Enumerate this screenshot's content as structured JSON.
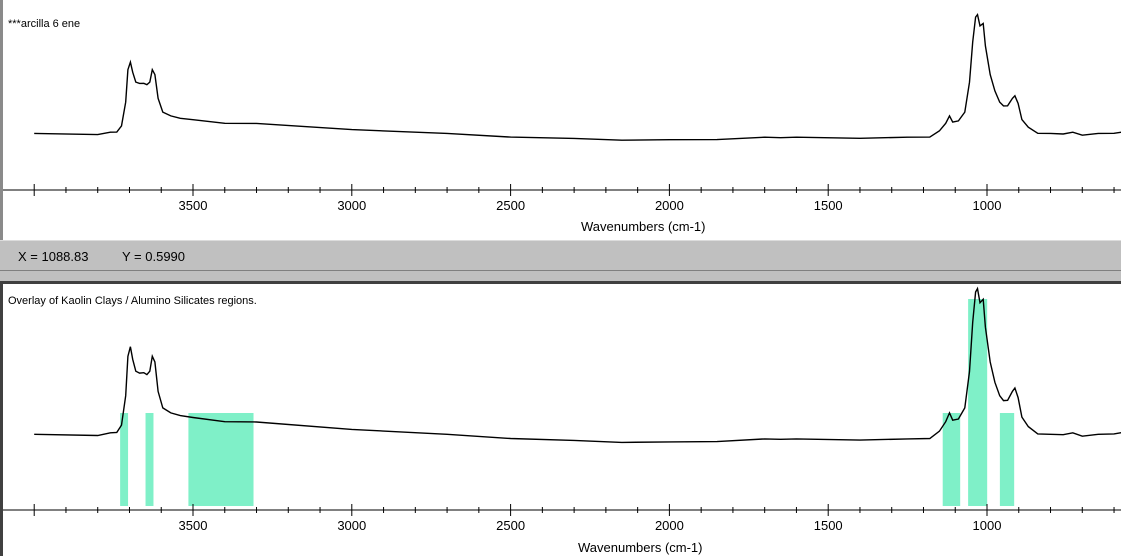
{
  "top_pane": {
    "title": "***arcilla 6 ene",
    "xlabel": "Wavenumbers (cm-1)",
    "ticks": [
      "3500",
      "3000",
      "2500",
      "2000",
      "1500",
      "1000"
    ]
  },
  "status": {
    "x_readout": "X = 1088.83",
    "y_readout": "Y = 0.5990"
  },
  "bottom_pane": {
    "title": "Overlay of Kaolin Clays / Alumino Silicates regions.",
    "xlabel": "Wavenumbers (cm-1)",
    "ticks": [
      "3500",
      "3000",
      "2500",
      "2000",
      "1500",
      "1000"
    ],
    "region_color": "#7ff0c8",
    "regions_cm1": [
      [
        3720,
        3695
      ],
      [
        3640,
        3615
      ],
      [
        3505,
        3300
      ],
      [
        1130,
        1075
      ],
      [
        1050,
        990
      ],
      [
        950,
        905
      ]
    ]
  },
  "colors": {
    "trace": "#000000",
    "status_bg": "#c0c0c0"
  }
}
